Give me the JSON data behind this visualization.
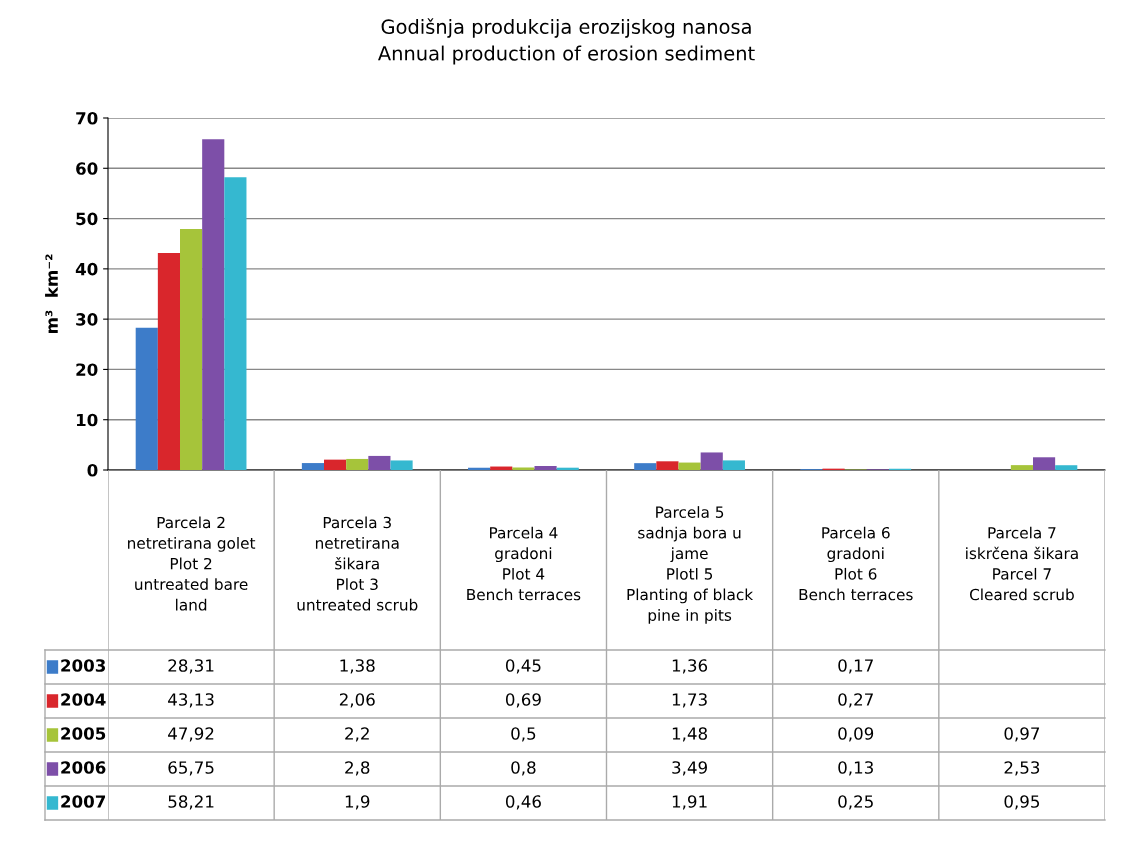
{
  "chart_data": {
    "type": "bar",
    "title": "Godišnja produkcija erozijskog nanosa",
    "subtitle": "Annual production of erosion sediment",
    "ylabel": "m³  km⁻²",
    "categories": [
      "Parcela 2\nnetretirana golet\nPlot 2\nuntreated bare\nland",
      "Parcela 3\nnetretirana\nšikara\nPlot 3\nuntreated scrub",
      "Parcela 4\ngradoni\nPlot 4\nBench terraces",
      "Parcela 5\nsadnja bora u\njame\nPlotl 5\nPlanting of black\npine in pits",
      "Parcela 6\ngradoni\nPlot 6\nBench terraces",
      "Parcela 7\niskrčena šikara\nParcel 7\nCleared scrub"
    ],
    "series": [
      {
        "name": "2003",
        "color": "#3d7cc9",
        "values": [
          28.31,
          1.38,
          0.45,
          1.36,
          0.17,
          null
        ],
        "value_labels": [
          "28,31",
          "1,38",
          "0,45",
          "1,36",
          "0,17",
          null
        ]
      },
      {
        "name": "2004",
        "color": "#d9262c",
        "values": [
          43.13,
          2.06,
          0.69,
          1.73,
          0.27,
          null
        ],
        "value_labels": [
          "43,13",
          "2,06",
          "0,69",
          "1,73",
          "0,27",
          null
        ]
      },
      {
        "name": "2005",
        "color": "#a6c43a",
        "values": [
          47.92,
          2.2,
          0.5,
          1.48,
          0.09,
          0.97
        ],
        "value_labels": [
          "47,92",
          "2,2",
          "0,5",
          "1,48",
          "0,09",
          "0,97"
        ]
      },
      {
        "name": "2006",
        "color": "#7d4fa8",
        "values": [
          65.75,
          2.8,
          0.8,
          3.49,
          0.13,
          2.53
        ],
        "value_labels": [
          "65,75",
          "2,8",
          "0,8",
          "3,49",
          "0,13",
          "2,53"
        ]
      },
      {
        "name": "2007",
        "color": "#35b8d0",
        "values": [
          58.21,
          1.9,
          0.46,
          1.91,
          0.25,
          0.95
        ],
        "value_labels": [
          "58,21",
          "1,9",
          "0,46",
          "1,91",
          "0,25",
          "0,95"
        ]
      }
    ],
    "ylim": [
      0,
      70
    ],
    "yticks": [
      0,
      10,
      20,
      30,
      40,
      50,
      60,
      70
    ],
    "grid": "y",
    "legend": "bottom left"
  }
}
